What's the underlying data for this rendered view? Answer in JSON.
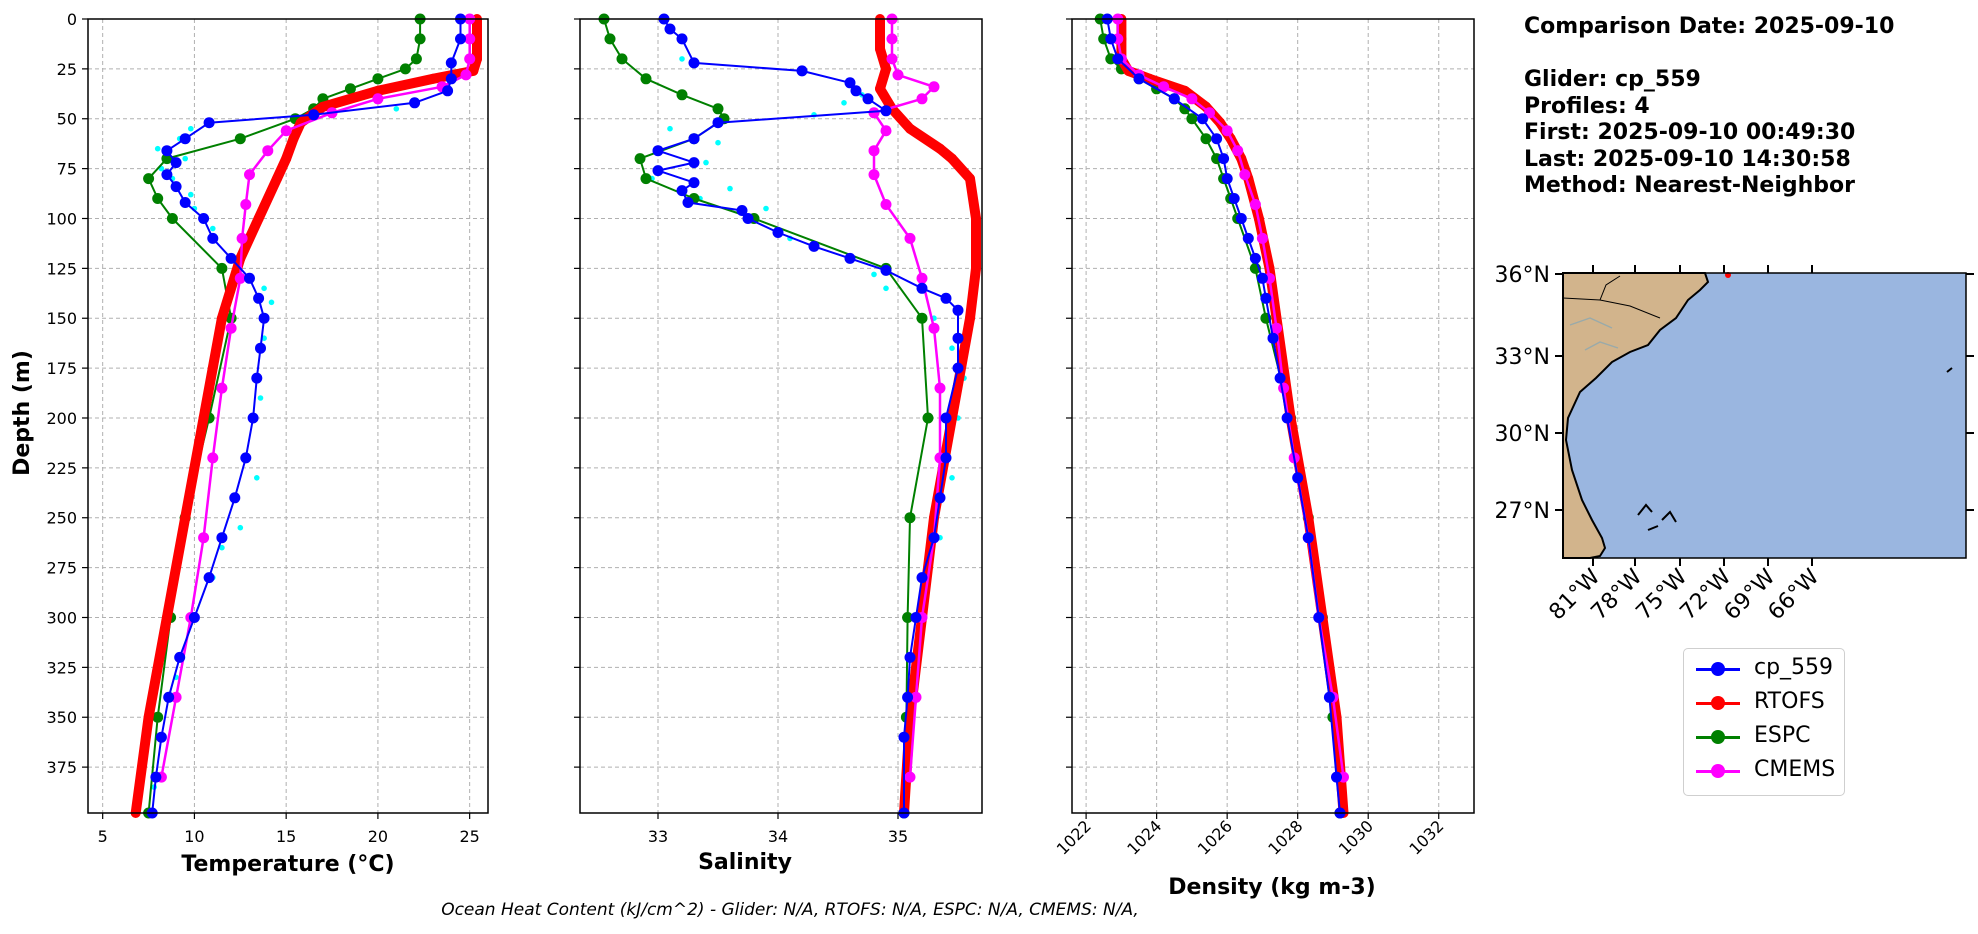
{
  "info": {
    "comparison_date": "Comparison Date: 2025-09-10",
    "glider": "Glider: cp_559",
    "profiles": "Profiles: 4",
    "first": "First: 2025-09-10 00:49:30",
    "last": "Last: 2025-09-10 14:30:58",
    "method": "Method: Nearest-Neighbor"
  },
  "footer": "Ocean Heat Content (kJ/cm^2) - Glider: N/A,  RTOFS: N/A,  ESPC: N/A,  CMEMS: N/A,",
  "colors": {
    "cp_559": "#0000ff",
    "RTOFS": "#ff0000",
    "ESPC": "#008000",
    "CMEMS": "#ff00ff",
    "glider_raw": "#00ffff",
    "land": "#d2b48c",
    "ocean": "#9ab6e0"
  },
  "legend": [
    {
      "name": "cp_559",
      "color": "#0000ff"
    },
    {
      "name": "RTOFS",
      "color": "#ff0000"
    },
    {
      "name": "ESPC",
      "color": "#008000"
    },
    {
      "name": "CMEMS",
      "color": "#ff00ff"
    }
  ],
  "map": {
    "lat_ticks": [
      "36°N",
      "33°N",
      "30°N",
      "27°N"
    ],
    "lon_ticks": [
      "81°W",
      "78°W",
      "75°W",
      "72°W",
      "69°W",
      "66°W"
    ]
  },
  "chart_data": [
    {
      "type": "line",
      "xlabel": "Temperature (°C)",
      "ylabel": "Depth (m)",
      "xlim": [
        4.2,
        26.0
      ],
      "ylim": [
        398,
        0
      ],
      "xticks": [
        5,
        10,
        15,
        20,
        25
      ],
      "yticks": [
        0,
        25,
        50,
        75,
        100,
        125,
        150,
        175,
        200,
        225,
        250,
        275,
        300,
        325,
        350,
        375
      ],
      "grid": true,
      "series": [
        {
          "name": "cp_559",
          "depth": [
            0,
            10,
            22,
            30,
            36,
            42,
            48,
            52,
            60,
            66,
            72,
            78,
            84,
            92,
            100,
            110,
            120,
            130,
            140,
            150,
            165,
            180,
            200,
            220,
            240,
            260,
            280,
            300,
            320,
            340,
            360,
            380,
            398
          ],
          "values": [
            24.5,
            24.5,
            24.0,
            24.0,
            23.8,
            22.0,
            16.5,
            10.8,
            9.5,
            8.5,
            9.0,
            8.5,
            9.0,
            9.5,
            10.5,
            11.0,
            12.0,
            13.0,
            13.5,
            13.8,
            13.6,
            13.4,
            13.2,
            12.8,
            12.2,
            11.5,
            10.8,
            10.0,
            9.2,
            8.6,
            8.2,
            7.9,
            7.7
          ]
        },
        {
          "name": "RTOFS",
          "depth": [
            0,
            10,
            20,
            26,
            30,
            36,
            44,
            52,
            60,
            70,
            80,
            100,
            120,
            150,
            200,
            250,
            300,
            350,
            398
          ],
          "values": [
            25.4,
            25.4,
            25.4,
            25.2,
            23.0,
            20.0,
            17.0,
            15.8,
            15.4,
            15.0,
            14.5,
            13.5,
            12.5,
            11.5,
            10.5,
            9.5,
            8.5,
            7.5,
            6.8
          ]
        },
        {
          "name": "ESPC",
          "depth": [
            0,
            10,
            20,
            25,
            30,
            35,
            40,
            45,
            50,
            60,
            70,
            80,
            90,
            100,
            125,
            150,
            200,
            250,
            300,
            350,
            398
          ],
          "values": [
            22.3,
            22.3,
            22.1,
            21.5,
            20.0,
            18.5,
            17.0,
            16.5,
            15.5,
            12.5,
            8.5,
            7.5,
            8.0,
            8.8,
            11.5,
            12.0,
            10.8,
            9.5,
            8.7,
            8.0,
            7.5
          ]
        },
        {
          "name": "CMEMS",
          "depth": [
            0,
            10,
            20,
            28,
            34,
            40,
            47,
            56,
            66,
            78,
            93,
            110,
            130,
            155,
            185,
            220,
            260,
            300,
            340,
            380
          ],
          "values": [
            25.0,
            25.0,
            25.0,
            24.8,
            23.5,
            20.0,
            17.5,
            15.0,
            14.0,
            13.0,
            12.8,
            12.6,
            12.5,
            12.0,
            11.5,
            11.0,
            10.5,
            9.8,
            9.0,
            8.2
          ]
        },
        {
          "name": "glider_raw",
          "depth": [
            45,
            55,
            60,
            65,
            70,
            75,
            80,
            85,
            88,
            95,
            105,
            118,
            135,
            142,
            160,
            190,
            230,
            255,
            265,
            280,
            300,
            330,
            360,
            385
          ],
          "values": [
            21.0,
            9.8,
            9.2,
            8.0,
            9.5,
            8.2,
            8.8,
            9.0,
            9.8,
            10.0,
            11.0,
            12.5,
            13.8,
            14.2,
            13.8,
            13.6,
            13.4,
            12.5,
            11.5,
            11.0,
            10.0,
            9.0,
            8.2,
            7.8
          ]
        }
      ]
    },
    {
      "type": "line",
      "xlabel": "Salinity",
      "xlim": [
        32.35,
        35.7
      ],
      "ylim": [
        398,
        0
      ],
      "xticks": [
        33,
        34,
        35
      ],
      "yticks": [
        0,
        25,
        50,
        75,
        100,
        125,
        150,
        175,
        200,
        225,
        250,
        275,
        300,
        325,
        350,
        375
      ],
      "grid": true,
      "series": [
        {
          "name": "cp_559",
          "depth": [
            0,
            5,
            10,
            22,
            26,
            32,
            36,
            40,
            46,
            52,
            60,
            66,
            72,
            76,
            82,
            86,
            92,
            96,
            100,
            107,
            114,
            120,
            126,
            135,
            140,
            146,
            160,
            175,
            200,
            220,
            240,
            260,
            280,
            300,
            320,
            340,
            360,
            398
          ],
          "values": [
            33.05,
            33.1,
            33.2,
            33.3,
            34.2,
            34.6,
            34.65,
            34.75,
            34.9,
            33.5,
            33.3,
            33.0,
            33.3,
            33.0,
            33.3,
            33.2,
            33.25,
            33.7,
            33.75,
            34.0,
            34.3,
            34.6,
            34.9,
            35.2,
            35.4,
            35.5,
            35.5,
            35.5,
            35.4,
            35.4,
            35.35,
            35.3,
            35.2,
            35.15,
            35.1,
            35.08,
            35.05,
            35.05
          ]
        },
        {
          "name": "RTOFS",
          "depth": [
            0,
            15,
            25,
            35,
            45,
            55,
            65,
            70,
            80,
            100,
            125,
            150,
            200,
            250,
            300,
            350,
            398
          ],
          "values": [
            34.85,
            34.85,
            34.9,
            34.85,
            34.95,
            35.1,
            35.35,
            35.45,
            35.6,
            35.65,
            35.65,
            35.6,
            35.45,
            35.3,
            35.2,
            35.1,
            35.05
          ]
        },
        {
          "name": "ESPC",
          "depth": [
            0,
            10,
            20,
            30,
            38,
            45,
            50,
            60,
            70,
            80,
            90,
            100,
            125,
            150,
            200,
            250,
            300,
            350,
            398
          ],
          "values": [
            32.55,
            32.6,
            32.7,
            32.9,
            33.2,
            33.5,
            33.55,
            33.3,
            32.85,
            32.9,
            33.3,
            33.8,
            34.9,
            35.2,
            35.25,
            35.1,
            35.08,
            35.07,
            35.05
          ]
        },
        {
          "name": "CMEMS",
          "depth": [
            0,
            10,
            20,
            28,
            34,
            40,
            47,
            56,
            66,
            78,
            93,
            110,
            130,
            155,
            185,
            220,
            260,
            300,
            340,
            380
          ],
          "values": [
            34.95,
            34.95,
            34.95,
            35.0,
            35.3,
            35.2,
            34.8,
            34.9,
            34.8,
            34.8,
            34.9,
            35.1,
            35.2,
            35.3,
            35.35,
            35.35,
            35.3,
            35.2,
            35.15,
            35.1
          ]
        },
        {
          "name": "glider_raw",
          "depth": [
            20,
            38,
            42,
            48,
            55,
            62,
            65,
            72,
            80,
            85,
            90,
            95,
            100,
            110,
            120,
            128,
            135,
            150,
            165,
            180,
            200,
            230,
            260
          ],
          "values": [
            33.2,
            34.7,
            34.55,
            34.3,
            33.1,
            33.5,
            33.0,
            33.4,
            32.95,
            33.6,
            33.35,
            33.9,
            33.75,
            34.1,
            34.6,
            34.8,
            34.9,
            35.3,
            35.45,
            35.55,
            35.5,
            35.45,
            35.35
          ]
        }
      ]
    },
    {
      "type": "line",
      "xlabel": "Density (kg m-3)",
      "xlim": [
        1021.6,
        1033.0
      ],
      "ylim": [
        398,
        0
      ],
      "xticks": [
        1022,
        1024,
        1026,
        1028,
        1030,
        1032
      ],
      "yticks": [
        0,
        25,
        50,
        75,
        100,
        125,
        150,
        175,
        200,
        225,
        250,
        275,
        300,
        325,
        350,
        375
      ],
      "grid": true,
      "series": [
        {
          "name": "cp_559",
          "depth": [
            0,
            10,
            20,
            30,
            40,
            50,
            60,
            70,
            80,
            90,
            100,
            110,
            120,
            130,
            140,
            160,
            180,
            200,
            230,
            260,
            300,
            340,
            380,
            398
          ],
          "values": [
            1022.6,
            1022.7,
            1022.9,
            1023.5,
            1024.5,
            1025.3,
            1025.7,
            1025.9,
            1026.0,
            1026.2,
            1026.4,
            1026.6,
            1026.8,
            1027.0,
            1027.1,
            1027.3,
            1027.5,
            1027.7,
            1028.0,
            1028.3,
            1028.6,
            1028.9,
            1029.1,
            1029.2
          ]
        },
        {
          "name": "RTOFS",
          "depth": [
            0,
            10,
            20,
            26,
            30,
            36,
            44,
            52,
            60,
            70,
            80,
            100,
            125,
            150,
            200,
            250,
            300,
            350,
            398
          ],
          "values": [
            1023.0,
            1023.0,
            1023.0,
            1023.2,
            1023.8,
            1024.8,
            1025.4,
            1025.8,
            1026.1,
            1026.4,
            1026.6,
            1026.9,
            1027.2,
            1027.4,
            1027.8,
            1028.3,
            1028.7,
            1029.1,
            1029.3
          ]
        },
        {
          "name": "ESPC",
          "depth": [
            0,
            10,
            20,
            25,
            30,
            35,
            40,
            45,
            50,
            60,
            70,
            80,
            90,
            100,
            125,
            150,
            200,
            250,
            300,
            350,
            398
          ],
          "values": [
            1022.4,
            1022.5,
            1022.7,
            1023.0,
            1023.5,
            1024.0,
            1024.5,
            1024.8,
            1025.0,
            1025.4,
            1025.7,
            1025.9,
            1026.1,
            1026.3,
            1026.8,
            1027.1,
            1027.8,
            1028.3,
            1028.7,
            1029.0,
            1029.2
          ]
        },
        {
          "name": "CMEMS",
          "depth": [
            0,
            10,
            20,
            28,
            34,
            40,
            47,
            56,
            66,
            78,
            93,
            110,
            130,
            155,
            185,
            220,
            260,
            300,
            340,
            380
          ],
          "values": [
            1022.9,
            1022.9,
            1023.0,
            1023.5,
            1024.2,
            1025.0,
            1025.5,
            1026.0,
            1026.3,
            1026.5,
            1026.8,
            1027.0,
            1027.2,
            1027.4,
            1027.6,
            1027.9,
            1028.3,
            1028.6,
            1029.0,
            1029.3
          ]
        }
      ]
    }
  ]
}
